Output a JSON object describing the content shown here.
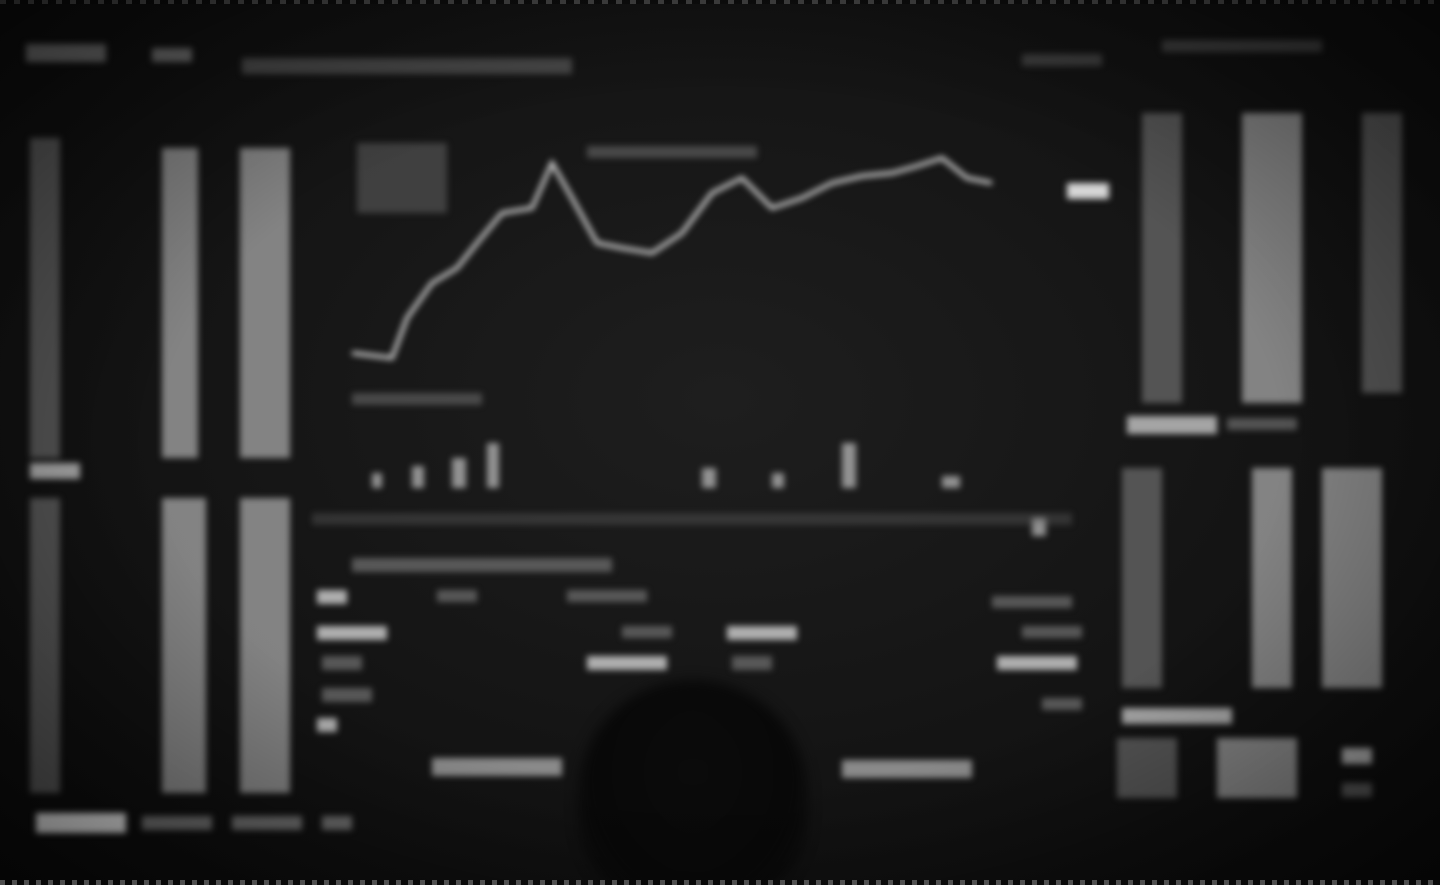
{
  "scene": {
    "description_free": true,
    "colors": {
      "background": "#050505",
      "screen_glow": "#1a1a1a",
      "line": "#d0d0d0",
      "text_blur": "#a8a8a8"
    }
  },
  "icons": [
    "head-silhouette"
  ]
}
